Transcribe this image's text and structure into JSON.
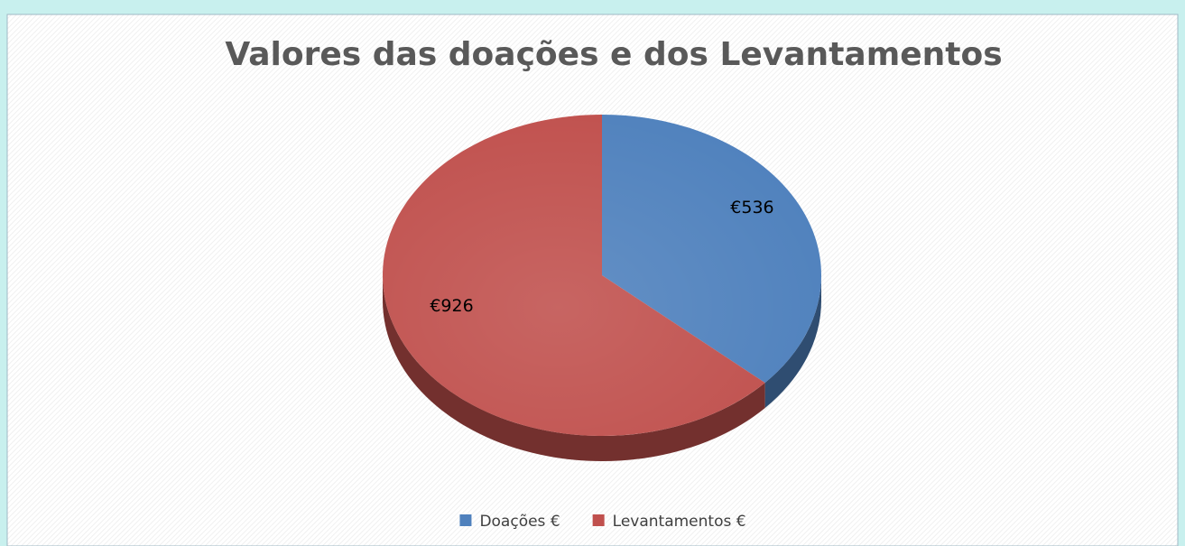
{
  "chart_data": {
    "type": "pie3d",
    "title": "Valores das doações e dos Levantamentos",
    "categories": [
      "Doações €",
      "Levantamentos €"
    ],
    "values": [
      536,
      926
    ],
    "value_labels": [
      "€536",
      "€926"
    ],
    "colors": [
      "#4f81bd",
      "#c0504d"
    ],
    "legend": "bottom"
  }
}
